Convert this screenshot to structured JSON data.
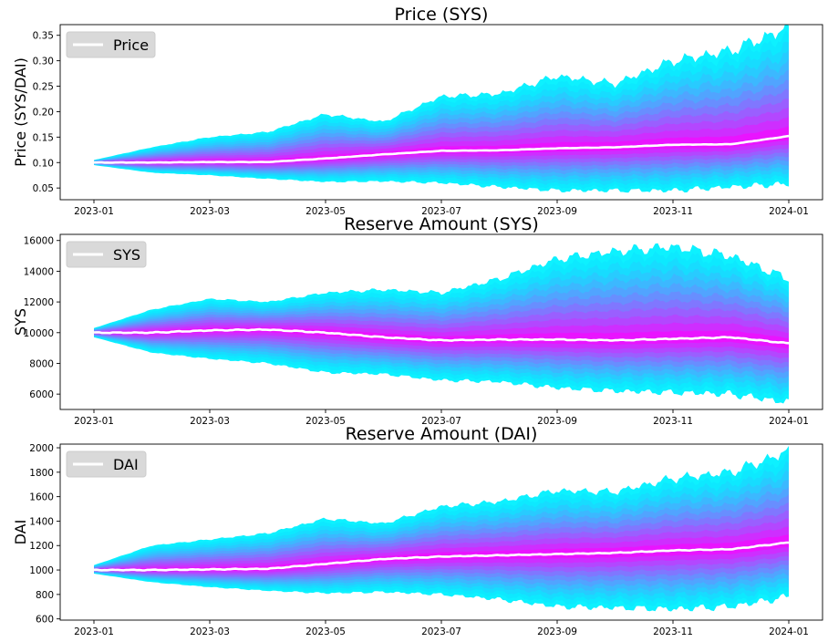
{
  "colors": {
    "band_outer": "#00f0ff",
    "band_inner": "#ff00ff",
    "median_line": "#ffffff",
    "legend_bg": "#d9d9d9"
  },
  "chart_data": [
    {
      "type": "area",
      "title": "Price (SYS)",
      "ylabel": "Price (SYS/DAI)",
      "legend": {
        "entries": [
          "Price"
        ],
        "placement": "top-left"
      },
      "grid": false,
      "xticks": [
        "2023-01",
        "2023-03",
        "2023-05",
        "2023-07",
        "2023-09",
        "2023-11",
        "2024-01"
      ],
      "yticks": [
        0.05,
        0.1,
        0.15,
        0.2,
        0.25,
        0.3,
        0.35
      ],
      "ytick_labels": [
        "0.05",
        "0.10",
        "0.15",
        "0.20",
        "0.25",
        "0.30",
        "0.35"
      ],
      "ylim": [
        0.027,
        0.371
      ],
      "x_months": [
        0,
        1,
        2,
        3,
        4,
        5,
        6,
        7,
        8,
        9,
        10,
        11,
        12
      ],
      "median": [
        0.1,
        0.1,
        0.101,
        0.101,
        0.108,
        0.116,
        0.123,
        0.124,
        0.128,
        0.13,
        0.135,
        0.136,
        0.152
      ],
      "upper": [
        0.105,
        0.13,
        0.15,
        0.16,
        0.195,
        0.18,
        0.23,
        0.235,
        0.27,
        0.255,
        0.3,
        0.32,
        0.365
      ],
      "lower": [
        0.095,
        0.08,
        0.075,
        0.068,
        0.062,
        0.063,
        0.06,
        0.052,
        0.045,
        0.045,
        0.045,
        0.052,
        0.058
      ]
    },
    {
      "type": "area",
      "title": "Reserve Amount (SYS)",
      "ylabel": "SYS",
      "legend": {
        "entries": [
          "SYS"
        ],
        "placement": "top-left"
      },
      "grid": false,
      "xticks": [
        "2023-01",
        "2023-03",
        "2023-05",
        "2023-07",
        "2023-09",
        "2023-11",
        "2024-01"
      ],
      "yticks": [
        6000,
        8000,
        10000,
        12000,
        14000,
        16000
      ],
      "ytick_labels": [
        "6000",
        "8000",
        "10000",
        "12000",
        "14000",
        "16000"
      ],
      "ylim": [
        5000,
        16400
      ],
      "x_months": [
        0,
        1,
        2,
        3,
        4,
        5,
        6,
        7,
        8,
        9,
        10,
        11,
        12
      ],
      "median": [
        10000,
        10000,
        10150,
        10200,
        10000,
        9700,
        9500,
        9550,
        9550,
        9500,
        9600,
        9700,
        9300
      ],
      "upper": [
        10300,
        11500,
        12200,
        12000,
        12600,
        12800,
        12600,
        13500,
        14800,
        15300,
        15600,
        15000,
        13500
      ],
      "lower": [
        9700,
        8700,
        8300,
        8000,
        7400,
        7300,
        6900,
        6800,
        6400,
        6200,
        6100,
        6000,
        5450
      ]
    },
    {
      "type": "area",
      "title": "Reserve Amount (DAI)",
      "ylabel": "DAI",
      "legend": {
        "entries": [
          "DAI"
        ],
        "placement": "top-left"
      },
      "grid": false,
      "xticks": [
        "2023-01",
        "2023-03",
        "2023-05",
        "2023-07",
        "2023-09",
        "2023-11",
        "2024-01"
      ],
      "yticks": [
        600,
        800,
        1000,
        1200,
        1400,
        1600,
        1800,
        2000
      ],
      "ytick_labels": [
        "600",
        "800",
        "1000",
        "1200",
        "1400",
        "1600",
        "1800",
        "2000"
      ],
      "ylim": [
        590,
        2030
      ],
      "x_months": [
        0,
        1,
        2,
        3,
        4,
        5,
        6,
        7,
        8,
        9,
        10,
        11,
        12
      ],
      "median": [
        1000,
        1000,
        1005,
        1010,
        1050,
        1090,
        1110,
        1120,
        1130,
        1140,
        1160,
        1170,
        1225
      ],
      "upper": [
        1040,
        1200,
        1250,
        1300,
        1420,
        1380,
        1520,
        1560,
        1650,
        1640,
        1750,
        1800,
        1970
      ],
      "lower": [
        970,
        900,
        860,
        830,
        810,
        820,
        800,
        760,
        700,
        690,
        680,
        700,
        780
      ]
    }
  ]
}
